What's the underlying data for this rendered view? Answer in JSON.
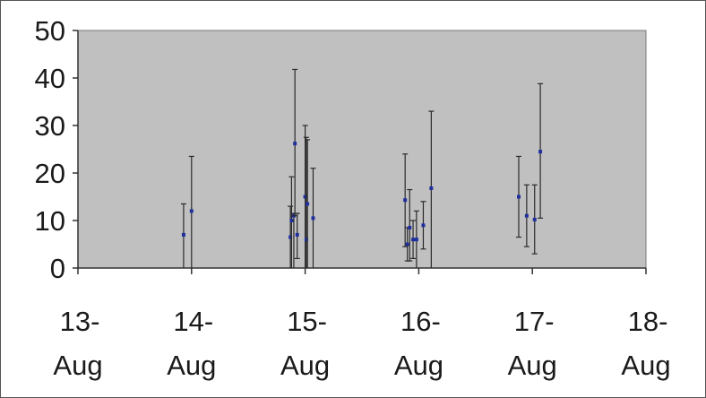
{
  "chart_data": {
    "type": "scatter",
    "title": "",
    "xlabel": "",
    "ylabel": "",
    "ylim": [
      0,
      50
    ],
    "yticks": [
      "0",
      "10",
      "20",
      "30",
      "40",
      "50"
    ],
    "xlim": [
      "2000-08-13",
      "2000-08-18"
    ],
    "xticks": [
      {
        "day": "13-",
        "month": "Aug"
      },
      {
        "day": "14-",
        "month": "Aug"
      },
      {
        "day": "15-",
        "month": "Aug"
      },
      {
        "day": "16-",
        "month": "Aug"
      },
      {
        "day": "17-",
        "month": "Aug"
      },
      {
        "day": "18-",
        "month": "Aug"
      }
    ],
    "grid": false,
    "legend": "none",
    "error_bars": "vertical",
    "points": [
      {
        "x": "13.93",
        "y": 7.0,
        "lo": 0,
        "hi": 13.5
      },
      {
        "x": "14.00",
        "y": 12.0,
        "lo": 0,
        "hi": 23.5
      },
      {
        "x": "14.87",
        "y": 6.5,
        "lo": 0,
        "hi": 13.0
      },
      {
        "x": "14.88",
        "y": 10.0,
        "lo": 0,
        "hi": 19.2
      },
      {
        "x": "14.90",
        "y": 11.0,
        "lo": 0,
        "hi": 11.5
      },
      {
        "x": "14.91",
        "y": 26.2,
        "lo": 11.0,
        "hi": 41.8
      },
      {
        "x": "14.93",
        "y": 7.0,
        "lo": 2.0,
        "hi": 11.5
      },
      {
        "x": "15.00",
        "y": 15.0,
        "lo": 0,
        "hi": 30.0
      },
      {
        "x": "15.01",
        "y": 6.0,
        "lo": 0,
        "hi": 27.5
      },
      {
        "x": "15.02",
        "y": 13.5,
        "lo": 0,
        "hi": 27.0
      },
      {
        "x": "15.07",
        "y": 10.5,
        "lo": 0,
        "hi": 21.0
      },
      {
        "x": "15.88",
        "y": 14.3,
        "lo": 4.5,
        "hi": 24.0
      },
      {
        "x": "15.90",
        "y": 5.0,
        "lo": 1.5,
        "hi": 8.5
      },
      {
        "x": "15.92",
        "y": 8.5,
        "lo": 1.5,
        "hi": 16.5
      },
      {
        "x": "15.95",
        "y": 6.0,
        "lo": 2.0,
        "hi": 10.0
      },
      {
        "x": "15.98",
        "y": 6.0,
        "lo": 0,
        "hi": 12.0
      },
      {
        "x": "16.04",
        "y": 9.0,
        "lo": 4.0,
        "hi": 14.0
      },
      {
        "x": "16.11",
        "y": 16.8,
        "lo": 0,
        "hi": 33.0
      },
      {
        "x": "16.88",
        "y": 15.0,
        "lo": 6.5,
        "hi": 23.5
      },
      {
        "x": "16.95",
        "y": 11.0,
        "lo": 4.5,
        "hi": 17.5
      },
      {
        "x": "17.02",
        "y": 10.2,
        "lo": 3.0,
        "hi": 17.5
      },
      {
        "x": "17.07",
        "y": 24.5,
        "lo": 10.5,
        "hi": 38.8
      }
    ],
    "colors": {
      "plot_background": "#c0c0c0",
      "marker": "#1f2fa0",
      "error_bar": "#2a2a2a",
      "axis": "#333333"
    }
  }
}
